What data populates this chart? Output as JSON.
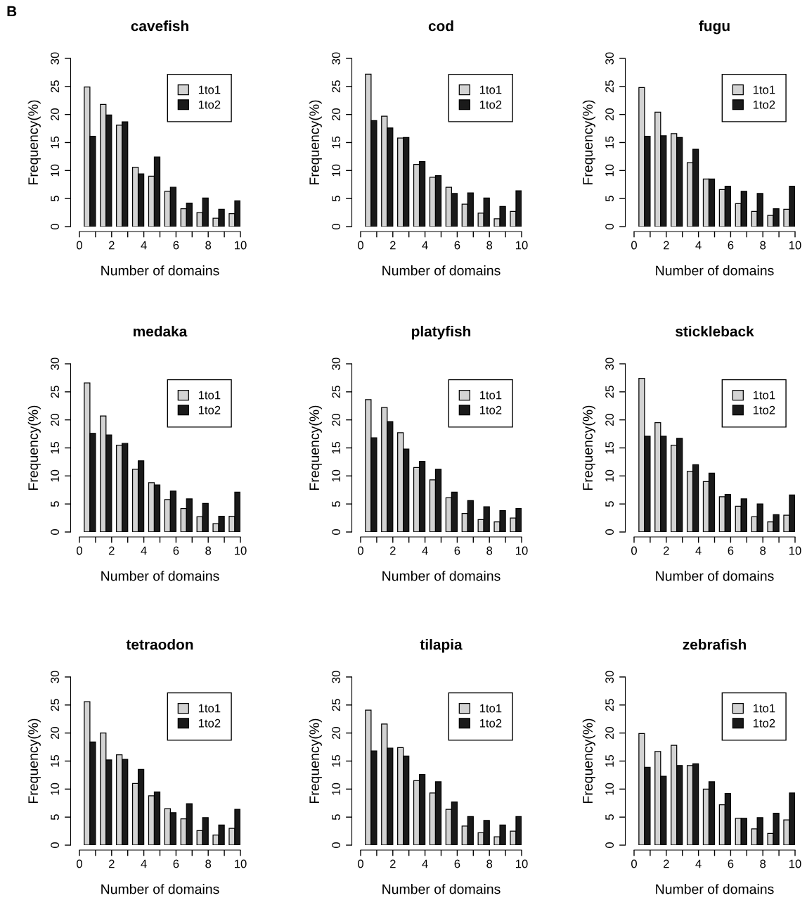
{
  "chart_data": [
    {
      "type": "bar",
      "title": "cavefish",
      "xlabel": "Number of domains",
      "ylabel": "Frequency(%)",
      "annotations": [
        "B"
      ],
      "legend": "top right",
      "x": [
        0.65,
        1.65,
        2.65,
        3.65,
        4.65,
        5.65,
        6.65,
        7.65,
        8.65,
        9.65
      ],
      "series": [
        {
          "name": "1to1",
          "color": "#d3d3d3",
          "values": [
            24.9,
            21.8,
            18.1,
            10.6,
            9.0,
            6.3,
            3.2,
            2.5,
            1.5,
            2.3
          ]
        },
        {
          "name": "1to2",
          "color": "#1a1a1a",
          "values": [
            16.1,
            19.9,
            18.7,
            9.4,
            12.4,
            7.0,
            4.2,
            5.1,
            3.1,
            4.6
          ]
        }
      ],
      "xlim": [
        0,
        10
      ],
      "xticks": [
        0,
        {
          "value": 1,
          "label": null
        },
        2,
        {
          "value": 3,
          "label": null
        },
        4,
        {
          "value": 5,
          "label": null
        },
        6,
        {
          "value": 7,
          "label": null
        },
        8,
        {
          "value": 9,
          "label": null
        },
        10
      ],
      "ylim": [
        0,
        30
      ],
      "yticks": [
        0,
        5,
        10,
        15,
        20,
        25,
        30
      ]
    },
    {
      "type": "bar",
      "title": "cod",
      "xlabel": "Number of domains",
      "ylabel": "Frequency(%)",
      "legend": "top right",
      "x": [
        0.65,
        1.65,
        2.65,
        3.65,
        4.65,
        5.65,
        6.65,
        7.65,
        8.65,
        9.65
      ],
      "series": [
        {
          "name": "1to1",
          "color": "#d3d3d3",
          "values": [
            27.2,
            19.7,
            15.8,
            11.1,
            8.8,
            7.0,
            4.0,
            2.4,
            1.4,
            2.7
          ]
        },
        {
          "name": "1to2",
          "color": "#1a1a1a",
          "values": [
            18.9,
            17.6,
            15.9,
            11.6,
            9.1,
            5.9,
            6.0,
            5.1,
            3.6,
            6.4
          ]
        }
      ],
      "xlim": [
        0,
        10
      ],
      "xticks": [
        0,
        {
          "value": 1,
          "label": null
        },
        2,
        {
          "value": 3,
          "label": null
        },
        4,
        {
          "value": 5,
          "label": null
        },
        6,
        {
          "value": 7,
          "label": null
        },
        8,
        {
          "value": 9,
          "label": null
        },
        10
      ],
      "ylim": [
        0,
        30
      ],
      "yticks": [
        0,
        5,
        10,
        15,
        20,
        25,
        30
      ]
    },
    {
      "type": "bar",
      "title": "fugu",
      "xlabel": "Number of domains",
      "ylabel": "Frequency(%)",
      "legend": "top right",
      "x": [
        0.65,
        1.65,
        2.65,
        3.65,
        4.65,
        5.65,
        6.65,
        7.65,
        8.65,
        9.65
      ],
      "series": [
        {
          "name": "1to1",
          "color": "#d3d3d3",
          "values": [
            24.8,
            20.4,
            16.6,
            11.4,
            8.5,
            6.6,
            4.1,
            2.7,
            2.0,
            3.1
          ]
        },
        {
          "name": "1to2",
          "color": "#1a1a1a",
          "values": [
            16.1,
            16.2,
            15.9,
            13.8,
            8.5,
            7.2,
            6.3,
            5.9,
            3.2,
            7.2
          ]
        }
      ],
      "xlim": [
        0,
        10
      ],
      "xticks": [
        0,
        {
          "value": 1,
          "label": null
        },
        2,
        {
          "value": 3,
          "label": null
        },
        4,
        {
          "value": 5,
          "label": null
        },
        6,
        {
          "value": 7,
          "label": null
        },
        8,
        {
          "value": 9,
          "label": null
        },
        10
      ],
      "ylim": [
        0,
        30
      ],
      "yticks": [
        0,
        5,
        10,
        15,
        20,
        25,
        30
      ]
    },
    {
      "type": "bar",
      "title": "medaka",
      "xlabel": "Number of domains",
      "ylabel": "Frequency(%)",
      "legend": "top right",
      "x": [
        0.65,
        1.65,
        2.65,
        3.65,
        4.65,
        5.65,
        6.65,
        7.65,
        8.65,
        9.65
      ],
      "series": [
        {
          "name": "1to1",
          "color": "#d3d3d3",
          "values": [
            26.6,
            20.7,
            15.5,
            11.2,
            8.8,
            5.8,
            4.2,
            2.7,
            1.5,
            2.8
          ]
        },
        {
          "name": "1to2",
          "color": "#1a1a1a",
          "values": [
            17.6,
            17.3,
            15.8,
            12.7,
            8.4,
            7.3,
            5.9,
            5.1,
            2.8,
            7.1
          ]
        }
      ],
      "xlim": [
        0,
        10
      ],
      "xticks": [
        0,
        {
          "value": 1,
          "label": null
        },
        2,
        {
          "value": 3,
          "label": null
        },
        4,
        {
          "value": 5,
          "label": null
        },
        6,
        {
          "value": 7,
          "label": null
        },
        8,
        {
          "value": 9,
          "label": null
        },
        10
      ],
      "ylim": [
        0,
        30
      ],
      "yticks": [
        0,
        5,
        10,
        15,
        20,
        25,
        30
      ]
    },
    {
      "type": "bar",
      "title": "platyfish",
      "xlabel": "Number of domains",
      "ylabel": "Frequency(%)",
      "legend": "top right",
      "x": [
        0.65,
        1.65,
        2.65,
        3.65,
        4.65,
        5.65,
        6.65,
        7.65,
        8.65,
        9.65
      ],
      "series": [
        {
          "name": "1to1",
          "color": "#d3d3d3",
          "values": [
            23.6,
            22.2,
            17.7,
            11.5,
            9.3,
            6.1,
            3.3,
            2.2,
            1.8,
            2.5
          ]
        },
        {
          "name": "1to2",
          "color": "#1a1a1a",
          "values": [
            16.8,
            19.7,
            14.8,
            12.6,
            11.2,
            7.1,
            5.6,
            4.5,
            3.8,
            4.2
          ]
        }
      ],
      "xlim": [
        0,
        10
      ],
      "xticks": [
        0,
        {
          "value": 1,
          "label": null
        },
        2,
        {
          "value": 3,
          "label": null
        },
        4,
        {
          "value": 5,
          "label": null
        },
        6,
        {
          "value": 7,
          "label": null
        },
        8,
        {
          "value": 9,
          "label": null
        },
        10
      ],
      "ylim": [
        0,
        30
      ],
      "yticks": [
        0,
        5,
        10,
        15,
        20,
        25,
        30
      ]
    },
    {
      "type": "bar",
      "title": "stickleback",
      "xlabel": "Number of domains",
      "ylabel": "Frequency(%)",
      "legend": "top right",
      "x": [
        0.65,
        1.65,
        2.65,
        3.65,
        4.65,
        5.65,
        6.65,
        7.65,
        8.65,
        9.65
      ],
      "series": [
        {
          "name": "1to1",
          "color": "#d3d3d3",
          "values": [
            27.4,
            19.5,
            15.5,
            10.8,
            9.0,
            6.3,
            4.6,
            2.7,
            1.8,
            3.0
          ]
        },
        {
          "name": "1to2",
          "color": "#1a1a1a",
          "values": [
            17.1,
            17.1,
            16.7,
            12.0,
            10.5,
            6.7,
            5.9,
            5.0,
            3.1,
            6.6
          ]
        }
      ],
      "xlim": [
        0,
        10
      ],
      "xticks": [
        0,
        {
          "value": 1,
          "label": null
        },
        2,
        {
          "value": 3,
          "label": null
        },
        4,
        {
          "value": 5,
          "label": null
        },
        6,
        {
          "value": 7,
          "label": null
        },
        8,
        {
          "value": 9,
          "label": null
        },
        10
      ],
      "ylim": [
        0,
        30
      ],
      "yticks": [
        0,
        5,
        10,
        15,
        20,
        25,
        30
      ]
    },
    {
      "type": "bar",
      "title": "tetraodon",
      "xlabel": "Number of domains",
      "ylabel": "Frequency(%)",
      "legend": "top right",
      "x": [
        0.65,
        1.65,
        2.65,
        3.65,
        4.65,
        5.65,
        6.65,
        7.65,
        8.65,
        9.65
      ],
      "series": [
        {
          "name": "1to1",
          "color": "#d3d3d3",
          "values": [
            25.6,
            20.0,
            16.1,
            11.0,
            8.8,
            6.5,
            4.7,
            2.6,
            1.8,
            3.0
          ]
        },
        {
          "name": "1to2",
          "color": "#1a1a1a",
          "values": [
            18.4,
            15.2,
            15.3,
            13.5,
            9.5,
            5.8,
            7.4,
            4.9,
            3.6,
            6.4
          ]
        }
      ],
      "xlim": [
        0,
        10
      ],
      "xticks": [
        0,
        {
          "value": 1,
          "label": null
        },
        2,
        {
          "value": 3,
          "label": null
        },
        4,
        {
          "value": 5,
          "label": null
        },
        6,
        {
          "value": 7,
          "label": null
        },
        8,
        {
          "value": 9,
          "label": null
        },
        10
      ],
      "ylim": [
        0,
        30
      ],
      "yticks": [
        0,
        5,
        10,
        15,
        20,
        25,
        30
      ]
    },
    {
      "type": "bar",
      "title": "tilapia",
      "xlabel": "Number of domains",
      "ylabel": "Frequency(%)",
      "legend": "top right",
      "x": [
        0.65,
        1.65,
        2.65,
        3.65,
        4.65,
        5.65,
        6.65,
        7.65,
        8.65,
        9.65
      ],
      "series": [
        {
          "name": "1to1",
          "color": "#d3d3d3",
          "values": [
            24.1,
            21.6,
            17.4,
            11.5,
            9.3,
            6.4,
            3.4,
            2.2,
            1.5,
            2.5
          ]
        },
        {
          "name": "1to2",
          "color": "#1a1a1a",
          "values": [
            16.8,
            17.3,
            15.9,
            12.6,
            11.3,
            7.7,
            5.1,
            4.4,
            3.6,
            5.1
          ]
        }
      ],
      "xlim": [
        0,
        10
      ],
      "xticks": [
        0,
        {
          "value": 1,
          "label": null
        },
        2,
        {
          "value": 3,
          "label": null
        },
        4,
        {
          "value": 5,
          "label": null
        },
        6,
        {
          "value": 7,
          "label": null
        },
        8,
        {
          "value": 9,
          "label": null
        },
        10
      ],
      "ylim": [
        0,
        30
      ],
      "yticks": [
        0,
        5,
        10,
        15,
        20,
        25,
        30
      ]
    },
    {
      "type": "bar",
      "title": "zebrafish",
      "xlabel": "Number of domains",
      "ylabel": "Frequency(%)",
      "legend": "top right",
      "x": [
        0.65,
        1.65,
        2.65,
        3.65,
        4.65,
        5.65,
        6.65,
        7.65,
        8.65,
        9.65
      ],
      "series": [
        {
          "name": "1to1",
          "color": "#d3d3d3",
          "values": [
            19.9,
            16.7,
            17.8,
            14.2,
            10.0,
            7.2,
            4.8,
            2.9,
            2.1,
            4.5
          ]
        },
        {
          "name": "1to2",
          "color": "#1a1a1a",
          "values": [
            13.9,
            12.3,
            14.2,
            14.5,
            11.3,
            9.2,
            4.8,
            4.9,
            5.7,
            9.3
          ]
        }
      ],
      "xlim": [
        0,
        10
      ],
      "xticks": [
        0,
        {
          "value": 1,
          "label": null
        },
        2,
        {
          "value": 3,
          "label": null
        },
        4,
        {
          "value": 5,
          "label": null
        },
        6,
        {
          "value": 7,
          "label": null
        },
        8,
        {
          "value": 9,
          "label": null
        },
        10
      ],
      "ylim": [
        0,
        30
      ],
      "yticks": [
        0,
        5,
        10,
        15,
        20,
        25,
        30
      ]
    }
  ]
}
